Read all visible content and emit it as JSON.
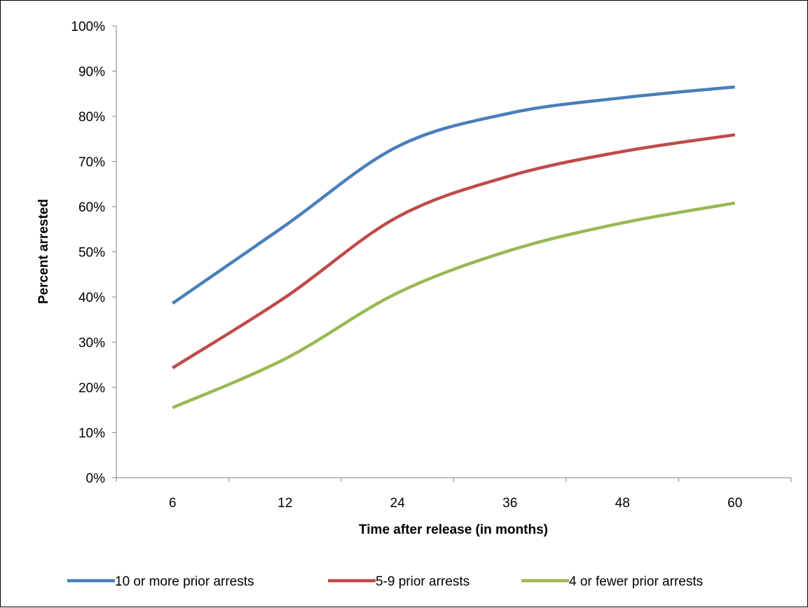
{
  "chart_data": {
    "type": "line",
    "title": "",
    "xlabel": "Time after release (in months)",
    "ylabel": "Percent arrested",
    "categories": [
      "6",
      "12",
      "24",
      "36",
      "48",
      "60"
    ],
    "y_ticks": [
      "0%",
      "10%",
      "20%",
      "30%",
      "40%",
      "50%",
      "60%",
      "70%",
      "80%",
      "90%",
      "100%"
    ],
    "ylim": [
      0,
      100
    ],
    "y_unit": "percent",
    "grid": false,
    "legend_position": "bottom",
    "smoothed": true,
    "series": [
      {
        "name": "10 or more prior arrests",
        "color": "#4a7ebb",
        "values": [
          38.6,
          55.8,
          73.3,
          80.7,
          84.1,
          86.5
        ]
      },
      {
        "name": "5-9 prior arrests",
        "color": "#be4b48",
        "values": [
          24.3,
          39.9,
          57.7,
          66.8,
          72.2,
          75.9
        ]
      },
      {
        "name": "4 or fewer prior arrests",
        "color": "#98b954",
        "values": [
          15.5,
          26.3,
          40.9,
          50.3,
          56.4,
          60.8
        ]
      }
    ]
  }
}
